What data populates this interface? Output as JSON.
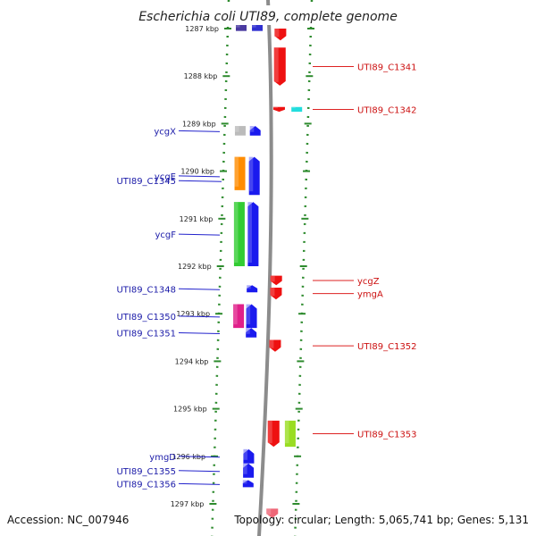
{
  "title": "Escherichia coli UTI89, complete genome",
  "footer": {
    "accession": "Accession: NC_007946",
    "summary": "Topology: circular; Length: 5,065,741 bp; Genes: 5,131"
  },
  "colors": {
    "backbone": "#8c8c8c",
    "ruler": "#2e8b2e",
    "label_left": "#1a1aa8",
    "label_right": "#cc1010",
    "leader_left": "#2222cc",
    "leader_right": "#dd2222"
  },
  "chart_data": {
    "type": "linear-genome-map",
    "view_range_kbp": [
      1287,
      1297
    ],
    "ticks": [
      "1287 kbp",
      "1288 kbp",
      "1289 kbp",
      "1290 kbp",
      "1291 kbp",
      "1292 kbp",
      "1293 kbp",
      "1294 kbp",
      "1295 kbp",
      "1296 kbp",
      "1297 kbp"
    ],
    "tick_values_kbp": [
      1287,
      1288,
      1289,
      1290,
      1291,
      1292,
      1293,
      1294,
      1295,
      1296,
      1297
    ],
    "features": [
      {
        "lane": "rev-cds",
        "start_kbp": 1286.9,
        "end_kbp": 1287.05,
        "color": "#4a3aa0"
      },
      {
        "lane": "rev-gene",
        "start_kbp": 1286.9,
        "end_kbp": 1287.05,
        "color": "#3030d0"
      },
      {
        "lane": "fwd-gene",
        "start_kbp": 1287.0,
        "end_kbp": 1287.25,
        "color": "#ee1111",
        "label": "",
        "strand": "+"
      },
      {
        "lane": "fwd-gene",
        "start_kbp": 1287.4,
        "end_kbp": 1288.2,
        "color": "#ee1111",
        "label": "UTI89_C1341",
        "strand": "+"
      },
      {
        "lane": "fwd-gene",
        "start_kbp": 1288.65,
        "end_kbp": 1288.75,
        "color": "#ee1111",
        "label": "UTI89_C1342",
        "strand": "+"
      },
      {
        "lane": "fwd-cds",
        "start_kbp": 1288.65,
        "end_kbp": 1288.75,
        "color": "#22dddd"
      },
      {
        "lane": "rev-cds",
        "start_kbp": 1289.05,
        "end_kbp": 1289.25,
        "color": "#bbbbbb"
      },
      {
        "lane": "rev-gene",
        "start_kbp": 1289.05,
        "end_kbp": 1289.25,
        "color": "#1a1aee",
        "label": "ycgX",
        "strand": "-"
      },
      {
        "lane": "rev-cds",
        "start_kbp": 1289.7,
        "end_kbp": 1290.4,
        "color": "#ff8c00"
      },
      {
        "lane": "rev-gene",
        "start_kbp": 1289.7,
        "end_kbp": 1290.5,
        "color": "#1a1aee",
        "label": "ycgE",
        "strand": "-"
      },
      {
        "lane": "rev-gene",
        "start_kbp": 1290.1,
        "end_kbp": 1290.3,
        "color": "#1a1aee",
        "label": "UTI89_C1345",
        "strand": "-",
        "leader_only": true
      },
      {
        "lane": "rev-cds",
        "start_kbp": 1290.65,
        "end_kbp": 1292.0,
        "color": "#33cc33"
      },
      {
        "lane": "rev-gene",
        "start_kbp": 1290.65,
        "end_kbp": 1292.0,
        "color": "#1a1aee",
        "label": "ycgF",
        "strand": "-"
      },
      {
        "lane": "fwd-gene",
        "start_kbp": 1292.2,
        "end_kbp": 1292.4,
        "color": "#ee1111",
        "label": "ycgZ",
        "strand": "+"
      },
      {
        "lane": "rev-gene",
        "start_kbp": 1292.4,
        "end_kbp": 1292.55,
        "color": "#1a1aee",
        "label": "UTI89_C1348",
        "strand": "-"
      },
      {
        "lane": "fwd-gene",
        "start_kbp": 1292.45,
        "end_kbp": 1292.7,
        "color": "#ee1111",
        "label": "ymgA",
        "strand": "+"
      },
      {
        "lane": "rev-cds",
        "start_kbp": 1292.8,
        "end_kbp": 1293.3,
        "color": "#e0208a"
      },
      {
        "lane": "rev-gene",
        "start_kbp": 1292.8,
        "end_kbp": 1293.3,
        "color": "#1a1aee",
        "label": "UTI89_C1350",
        "strand": "-"
      },
      {
        "lane": "rev-gene",
        "start_kbp": 1293.3,
        "end_kbp": 1293.5,
        "color": "#1a1aee",
        "label": "UTI89_C1351",
        "strand": "-"
      },
      {
        "lane": "fwd-gene",
        "start_kbp": 1293.55,
        "end_kbp": 1293.8,
        "color": "#ee1111",
        "label": "UTI89_C1352",
        "strand": "+"
      },
      {
        "lane": "fwd-gene",
        "start_kbp": 1295.25,
        "end_kbp": 1295.8,
        "color": "#ee1111",
        "label": "UTI89_C1353",
        "strand": "+"
      },
      {
        "lane": "fwd-cds",
        "start_kbp": 1295.25,
        "end_kbp": 1295.8,
        "color": "#99dd22"
      },
      {
        "lane": "rev-gene",
        "start_kbp": 1295.85,
        "end_kbp": 1296.15,
        "color": "#1a1aee",
        "label": "ymgD",
        "strand": "-"
      },
      {
        "lane": "rev-gene",
        "start_kbp": 1296.15,
        "end_kbp": 1296.45,
        "color": "#1a1aee",
        "label": "UTI89_C1355",
        "strand": "-"
      },
      {
        "lane": "rev-gene",
        "start_kbp": 1296.5,
        "end_kbp": 1296.65,
        "color": "#1a1aee",
        "label": "UTI89_C1356",
        "strand": "-"
      },
      {
        "lane": "fwd-gene",
        "start_kbp": 1297.1,
        "end_kbp": 1297.3,
        "color": "#ee6677",
        "label": "",
        "strand": "+"
      }
    ]
  }
}
